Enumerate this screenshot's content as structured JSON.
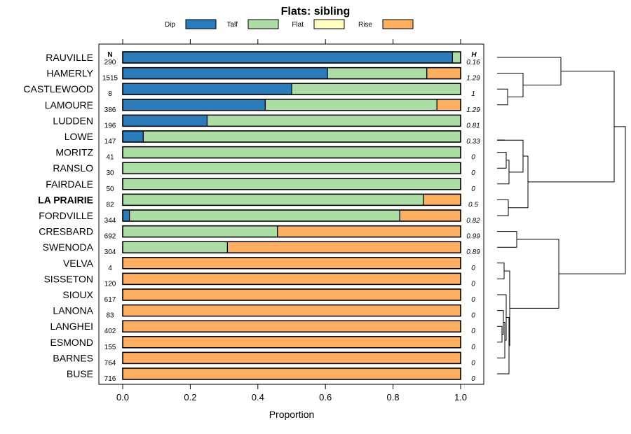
{
  "chart_data": {
    "type": "bar",
    "stacked": true,
    "orientation": "horizontal",
    "title": "Flats: sibling",
    "xlabel": "Proportion",
    "ylabel": "",
    "xlim": [
      0,
      1
    ],
    "xticks": [
      "0.0",
      "0.2",
      "0.4",
      "0.6",
      "0.8",
      "1.0"
    ],
    "n_header": "N",
    "h_header": "H",
    "highlight_category": "LA PRAIRIE",
    "legend_position": "top",
    "legend": [
      {
        "name": "Dip",
        "color": "#2b7bba"
      },
      {
        "name": "Talf",
        "color": "#abdda4"
      },
      {
        "name": "Flat",
        "color": "#ffffbf"
      },
      {
        "name": "Rise",
        "color": "#fdae61"
      }
    ],
    "categories": [
      "RAUVILLE",
      "HAMERLY",
      "CASTLEWOOD",
      "LAMOURE",
      "LUDDEN",
      "LOWE",
      "MORITZ",
      "RANSLO",
      "FAIRDALE",
      "LA PRAIRIE",
      "FORDVILLE",
      "CRESBARD",
      "SWENODA",
      "VELVA",
      "SISSETON",
      "SIOUX",
      "LANONA",
      "LANGHEI",
      "ESMOND",
      "BARNES",
      "BUSE"
    ],
    "n": [
      "290",
      "1515",
      "8",
      "386",
      "196",
      "147",
      "41",
      "30",
      "50",
      "82",
      "344",
      "692",
      "304",
      "4",
      "120",
      "617",
      "83",
      "402",
      "155",
      "764",
      "716"
    ],
    "h": [
      "0.16",
      "1.29",
      "1",
      "1.29",
      "0.81",
      "0.33",
      "0",
      "0",
      "0",
      "0.5",
      "0.82",
      "0.99",
      "0.89",
      "0",
      "0",
      "0",
      "0",
      "0",
      "0",
      "0",
      "0"
    ],
    "series": [
      {
        "name": "Dip",
        "values": [
          0.976,
          0.606,
          0.5,
          0.422,
          0.25,
          0.061,
          0,
          0,
          0,
          0,
          0.02,
          0,
          0,
          0,
          0,
          0,
          0,
          0,
          0,
          0,
          0
        ]
      },
      {
        "name": "Talf",
        "values": [
          0.024,
          0.294,
          0.5,
          0.508,
          0.75,
          0.939,
          1,
          1,
          1,
          0.89,
          0.8,
          0.458,
          0.31,
          0,
          0,
          0,
          0,
          0,
          0,
          0,
          0
        ]
      },
      {
        "name": "Flat",
        "values": [
          0,
          0,
          0,
          0,
          0,
          0,
          0,
          0,
          0,
          0,
          0,
          0,
          0,
          0,
          0,
          0,
          0,
          0,
          0,
          0,
          0
        ]
      },
      {
        "name": "Rise",
        "values": [
          0,
          0.1,
          0,
          0.07,
          0,
          0,
          0,
          0,
          0,
          0.11,
          0.18,
          0.542,
          0.69,
          1,
          1,
          1,
          1,
          1,
          1,
          1,
          1
        ]
      }
    ]
  }
}
